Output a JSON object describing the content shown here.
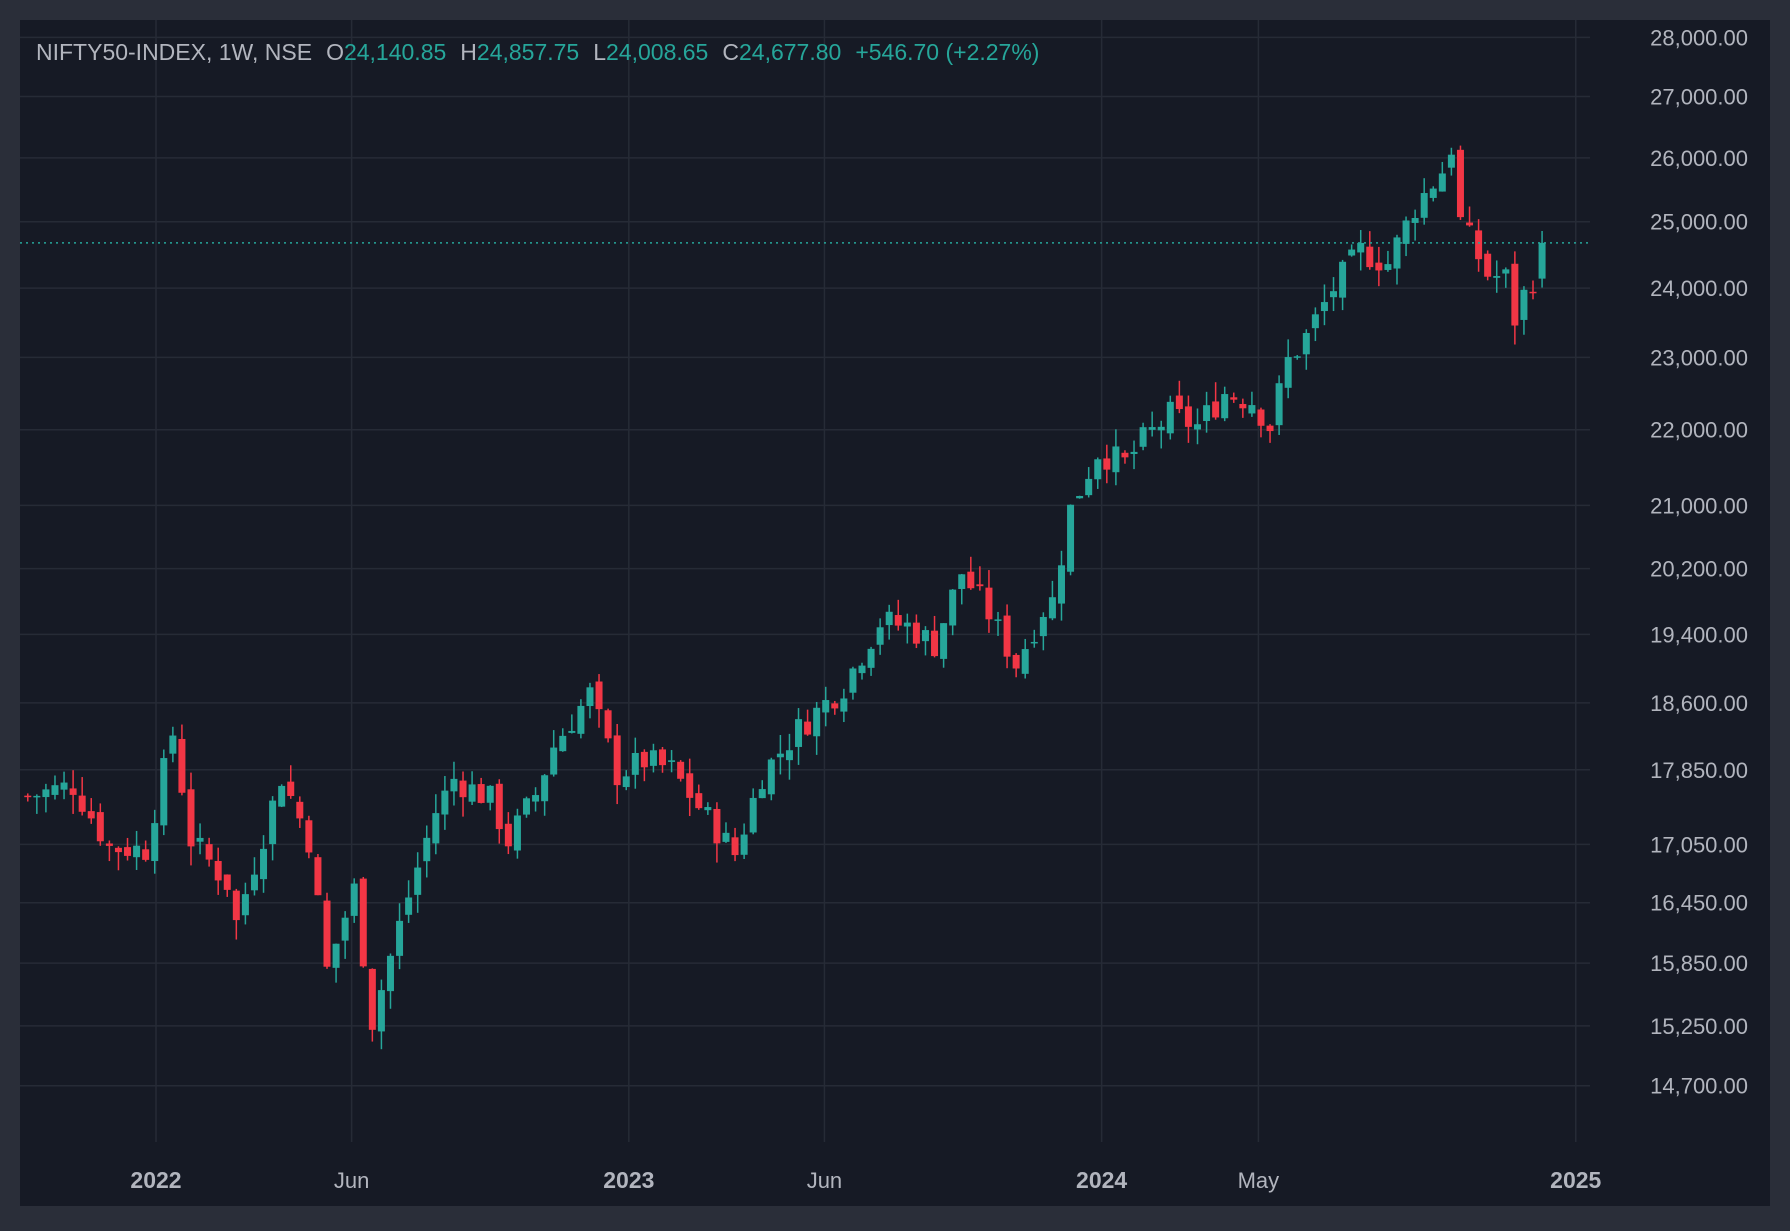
{
  "theme": {
    "background": "#161a25",
    "frame": "#2a2e39",
    "grid": "#262b36",
    "text": "#b2b5be",
    "up": "#26a69a",
    "down": "#f23645",
    "last_price_line": "#26a69a"
  },
  "legend": {
    "symbol": "NIFTY50-INDEX, 1W, NSE",
    "open_label": "O",
    "open_value": "24,140.85",
    "high_label": "H",
    "high_value": "24,857.75",
    "low_label": "L",
    "low_value": "24,008.65",
    "close_label": "C",
    "close_value": "24,677.80",
    "change": "+546.70 (+2.27%)"
  },
  "chart_data": {
    "type": "candlestick",
    "interval": "1W",
    "y_scale": "log",
    "ylim": [
      14200,
      28300
    ],
    "last_price": 24677.8,
    "y_ticks": [
      {
        "value": 28000,
        "label": "28,000.00"
      },
      {
        "value": 27000,
        "label": "27,000.00"
      },
      {
        "value": 26000,
        "label": "26,000.00"
      },
      {
        "value": 25000,
        "label": "25,000.00"
      },
      {
        "value": 24000,
        "label": "24,000.00"
      },
      {
        "value": 23000,
        "label": "23,000.00"
      },
      {
        "value": 22000,
        "label": "22,000.00"
      },
      {
        "value": 21000,
        "label": "21,000.00"
      },
      {
        "value": 20200,
        "label": "20,200.00"
      },
      {
        "value": 19400,
        "label": "19,400.00"
      },
      {
        "value": 18600,
        "label": "18,600.00"
      },
      {
        "value": 17850,
        "label": "17,850.00"
      },
      {
        "value": 17050,
        "label": "17,050.00"
      },
      {
        "value": 16450,
        "label": "16,450.00"
      },
      {
        "value": 15850,
        "label": "15,850.00"
      },
      {
        "value": 15250,
        "label": "15,250.00"
      },
      {
        "value": 14700,
        "label": "14,700.00"
      }
    ],
    "x_ticks": [
      {
        "date": "2022-01-01",
        "label": "2022",
        "major": true
      },
      {
        "date": "2022-06-01",
        "label": "Jun",
        "major": false
      },
      {
        "date": "2023-01-01",
        "label": "2023",
        "major": true
      },
      {
        "date": "2023-06-01",
        "label": "Jun",
        "major": false
      },
      {
        "date": "2024-01-01",
        "label": "2024",
        "major": true
      },
      {
        "date": "2024-05-01",
        "label": "May",
        "major": false
      },
      {
        "date": "2025-01-01",
        "label": "2025",
        "major": true
      }
    ],
    "x_range": [
      "2021-09-18",
      "2025-01-12"
    ],
    "close_path": [
      [
        "2021-09-24",
        17560
      ],
      [
        "2021-10-29",
        17680
      ],
      [
        "2021-11-26",
        17020
      ],
      [
        "2021-12-24",
        17000
      ],
      [
        "2022-01-14",
        18250
      ],
      [
        "2022-01-28",
        17100
      ],
      [
        "2022-02-25",
        16650
      ],
      [
        "2022-03-04",
        16250
      ],
      [
        "2022-03-25",
        17150
      ],
      [
        "2022-04-08",
        17780
      ],
      [
        "2022-04-29",
        17100
      ],
      [
        "2022-05-13",
        15780
      ],
      [
        "2022-06-03",
        16580
      ],
      [
        "2022-06-17",
        15300
      ],
      [
        "2022-07-08",
        16220
      ],
      [
        "2022-08-05",
        17400
      ],
      [
        "2022-08-19",
        17750
      ],
      [
        "2022-09-16",
        17530
      ],
      [
        "2022-09-30",
        17090
      ],
      [
        "2022-10-21",
        17580
      ],
      [
        "2022-11-04",
        18110
      ],
      [
        "2022-12-02",
        18700
      ],
      [
        "2022-12-23",
        17800
      ],
      [
        "2023-01-13",
        17950
      ],
      [
        "2023-02-03",
        17850
      ],
      [
        "2023-02-24",
        17450
      ],
      [
        "2023-03-24",
        16950
      ],
      [
        "2023-04-14",
        17800
      ],
      [
        "2023-05-12",
        18300
      ],
      [
        "2023-06-16",
        18800
      ],
      [
        "2023-07-14",
        19550
      ],
      [
        "2023-08-04",
        19500
      ],
      [
        "2023-08-25",
        19280
      ],
      [
        "2023-09-15",
        20150
      ],
      [
        "2023-10-06",
        19650
      ],
      [
        "2023-10-27",
        19050
      ],
      [
        "2023-11-17",
        19700
      ],
      [
        "2023-11-24",
        19800
      ],
      [
        "2023-12-08",
        20950
      ],
      [
        "2023-12-29",
        21700
      ],
      [
        "2024-01-19",
        21550
      ],
      [
        "2024-02-02",
        21850
      ],
      [
        "2024-02-23",
        22200
      ],
      [
        "2024-03-15",
        22050
      ],
      [
        "2024-04-05",
        22500
      ],
      [
        "2024-04-26",
        22400
      ],
      [
        "2024-05-10",
        22050
      ],
      [
        "2024-05-24",
        22950
      ],
      [
        "2024-06-07",
        23290
      ],
      [
        "2024-06-28",
        24000
      ],
      [
        "2024-07-19",
        24550
      ],
      [
        "2024-08-09",
        24370
      ],
      [
        "2024-08-30",
        25230
      ],
      [
        "2024-09-20",
        25800
      ],
      [
        "2024-09-27",
        26180
      ],
      [
        "2024-10-04",
        25000
      ],
      [
        "2024-10-25",
        24200
      ],
      [
        "2024-11-08",
        24150
      ],
      [
        "2024-11-15",
        23550
      ],
      [
        "2024-11-22",
        23900
      ],
      [
        "2024-11-29",
        24140
      ],
      [
        "2024-12-06",
        24677.8
      ]
    ]
  }
}
